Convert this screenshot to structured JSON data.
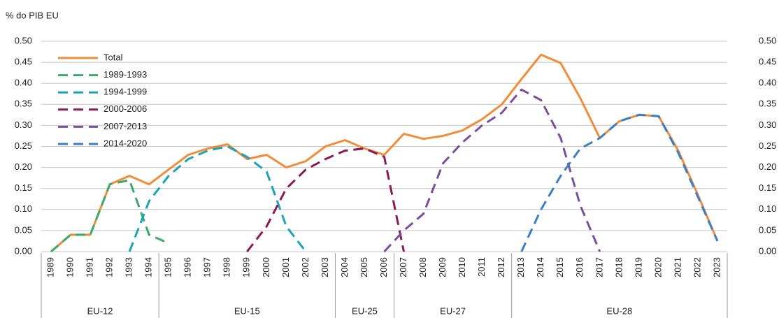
{
  "chart_data": {
    "type": "line",
    "y_label": "% do PIB EU",
    "categories": [
      "1989",
      "1990",
      "1991",
      "1992",
      "1993",
      "1994",
      "1995",
      "1996",
      "1997",
      "1998",
      "1999",
      "2000",
      "2001",
      "2002",
      "2003",
      "2004",
      "2005",
      "2006",
      "2007",
      "2008",
      "2009",
      "2010",
      "2011",
      "2012",
      "2013",
      "2014",
      "2015",
      "2016",
      "2017",
      "2018",
      "2019",
      "2020",
      "2021",
      "2022",
      "2023"
    ],
    "groups": [
      {
        "label": "EU-12",
        "from": "1989",
        "to": "1994"
      },
      {
        "label": "EU-15",
        "from": "1995",
        "to": "2003"
      },
      {
        "label": "EU-25",
        "from": "2004",
        "to": "2006"
      },
      {
        "label": "EU-27",
        "from": "2007",
        "to": "2012"
      },
      {
        "label": "EU-28",
        "from": "2013",
        "to": "2023"
      }
    ],
    "series": [
      {
        "name": "Total",
        "color": "#f28c38",
        "dashed": false,
        "values": [
          0.0,
          0.04,
          0.04,
          0.16,
          0.18,
          0.16,
          0.195,
          0.23,
          0.245,
          0.255,
          0.22,
          0.23,
          0.2,
          0.215,
          0.25,
          0.265,
          0.245,
          0.23,
          0.28,
          0.268,
          0.275,
          0.288,
          0.315,
          0.35,
          0.41,
          0.468,
          0.448,
          0.365,
          0.27,
          0.31,
          0.325,
          0.322,
          0.24,
          0.135,
          0.025
        ]
      },
      {
        "name": "1989-1993",
        "color": "#3aaa6e",
        "dashed": true,
        "values": [
          0.0,
          0.04,
          0.04,
          0.16,
          0.17,
          0.04,
          0.02,
          null,
          null,
          null,
          null,
          null,
          null,
          null,
          null,
          null,
          null,
          null,
          null,
          null,
          null,
          null,
          null,
          null,
          null,
          null,
          null,
          null,
          null,
          null,
          null,
          null,
          null,
          null,
          null
        ]
      },
      {
        "name": "1994-1999",
        "color": "#1ba3b8",
        "dashed": true,
        "values": [
          null,
          null,
          null,
          null,
          0.0,
          0.12,
          0.18,
          0.22,
          0.24,
          0.25,
          0.225,
          0.19,
          0.06,
          0.0,
          null,
          null,
          null,
          null,
          null,
          null,
          null,
          null,
          null,
          null,
          null,
          null,
          null,
          null,
          null,
          null,
          null,
          null,
          null,
          null,
          null
        ]
      },
      {
        "name": "2000-2006",
        "color": "#8b1a52",
        "dashed": true,
        "values": [
          null,
          null,
          null,
          null,
          null,
          null,
          null,
          null,
          null,
          null,
          0.0,
          0.06,
          0.15,
          0.195,
          0.22,
          0.24,
          0.245,
          0.225,
          0.0,
          null,
          null,
          null,
          null,
          null,
          null,
          null,
          null,
          null,
          null,
          null,
          null,
          null,
          null,
          null,
          null
        ]
      },
      {
        "name": "2007-2013",
        "color": "#7b4e9e",
        "dashed": true,
        "values": [
          null,
          null,
          null,
          null,
          null,
          null,
          null,
          null,
          null,
          null,
          null,
          null,
          null,
          null,
          null,
          null,
          null,
          0.0,
          0.05,
          0.09,
          0.21,
          0.26,
          0.3,
          0.33,
          0.385,
          0.36,
          0.27,
          0.11,
          0.0,
          null,
          null,
          null,
          null,
          null,
          null
        ]
      },
      {
        "name": "2014-2020",
        "color": "#3a7fc4",
        "dashed": true,
        "values": [
          null,
          null,
          null,
          null,
          null,
          null,
          null,
          null,
          null,
          null,
          null,
          null,
          null,
          null,
          null,
          null,
          null,
          null,
          null,
          null,
          null,
          null,
          null,
          null,
          0.0,
          0.1,
          0.18,
          0.245,
          0.27,
          0.31,
          0.325,
          0.322,
          0.235,
          0.13,
          0.025
        ]
      }
    ],
    "ylim": [
      0,
      0.5
    ],
    "yticks": [
      {
        "value": 0,
        "label": "0.00"
      },
      {
        "value": 0.05,
        "label": "0.05"
      },
      {
        "value": 0.1,
        "label": "0.10"
      },
      {
        "value": 0.15,
        "label": "0.15"
      },
      {
        "value": 0.2,
        "label": "0.20"
      },
      {
        "value": 0.25,
        "label": "0.25"
      },
      {
        "value": 0.3,
        "label": "0.30"
      },
      {
        "value": 0.35,
        "label": "0.35"
      },
      {
        "value": 0.4,
        "label": "0.40"
      },
      {
        "value": 0.45,
        "label": "0.45"
      },
      {
        "value": 0.5,
        "label": "0.50"
      }
    ],
    "grid": true,
    "right_axis": true,
    "legend": "upper left"
  }
}
